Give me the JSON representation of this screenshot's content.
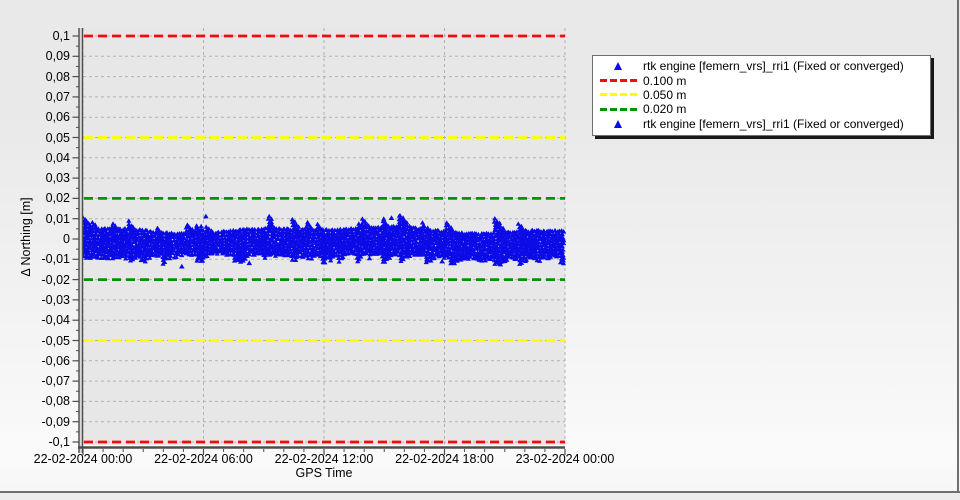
{
  "window": {
    "border_color": "#6f6f6f",
    "bg_top": "#e9e9e9",
    "bg_bottom": "#fbfbfb"
  },
  "chart_data": {
    "type": "scatter",
    "title": "",
    "xlabel": "GPS Time",
    "ylabel": "Δ Northing [m]",
    "x_ticks": [
      "22-02-2024 00:00",
      "22-02-2024 06:00",
      "22-02-2024 12:00",
      "22-02-2024 18:00",
      "23-02-2024 00:00"
    ],
    "x_span_hours": 24,
    "x_minor_tick_hours": 1,
    "y_ticks": [
      "0,1",
      "0,09",
      "0,08",
      "0,07",
      "0,06",
      "0,05",
      "0,04",
      "0,03",
      "0,02",
      "0,01",
      "0",
      "-0,01",
      "-0,02",
      "-0,03",
      "-0,04",
      "-0,05",
      "-0,06",
      "-0,07",
      "-0,08",
      "-0,09",
      "-0,1"
    ],
    "y_tick_step_m": 0.01,
    "ylim": [
      -0.104,
      0.104
    ],
    "grid": {
      "show": true,
      "style": "dashed",
      "color": "#b2b2b2"
    },
    "plot_bg": "#e7e7e7",
    "axis_color": "#4d4d4d",
    "thresholds": [
      {
        "label": "0.100 m",
        "value_m": 0.1,
        "color": "#f20d0d",
        "style": "dashed",
        "mirrored": true
      },
      {
        "label": "0.050 m",
        "value_m": 0.05,
        "color": "#ffff00",
        "style": "dashed",
        "mirrored": true
      },
      {
        "label": "0.020 m",
        "value_m": 0.02,
        "color": "#009400",
        "style": "dashed",
        "mirrored": true
      }
    ],
    "series": [
      {
        "name": "rtk engine [femern_vrs]_rri1 (Fixed or converged)",
        "color": "#0b0be8",
        "marker": "triangle-up",
        "description": "Dense noise band of RTK northing deviations over 24 h, centered slightly below zero",
        "band": {
          "center_m": -0.0017,
          "typical_max_m": 0.005,
          "typical_min_m": -0.0085,
          "spike_max_m": 0.011,
          "spike_min_m": -0.0125
        },
        "outliers": [
          {
            "time_frac": 0.205,
            "value_m": -0.0135
          },
          {
            "time_frac": 0.345,
            "value_m": -0.0118
          },
          {
            "time_frac": 0.5,
            "value_m": -0.0115
          },
          {
            "time_frac": 0.625,
            "value_m": -0.0112
          },
          {
            "time_frac": 0.745,
            "value_m": -0.011
          },
          {
            "time_frac": 0.875,
            "value_m": -0.0108
          },
          {
            "time_frac": 0.255,
            "value_m": 0.0112
          },
          {
            "time_frac": 0.64,
            "value_m": 0.0104
          }
        ]
      }
    ],
    "legend": {
      "position": "top-right",
      "entries": [
        {
          "marker": "triangle",
          "color": "#0b0be8",
          "label": "rtk engine [femern_vrs]_rri1 (Fixed or converged)"
        },
        {
          "marker": "dashes",
          "color": "#f20d0d",
          "label": "0.100 m"
        },
        {
          "marker": "dashes",
          "color": "#ffff00",
          "label": "0.050 m"
        },
        {
          "marker": "dashes",
          "color": "#009400",
          "label": "0.020 m"
        },
        {
          "marker": "triangle",
          "color": "#0b0be8",
          "label": "rtk engine [femern_vrs]_rri1 (Fixed or converged)"
        }
      ]
    }
  }
}
